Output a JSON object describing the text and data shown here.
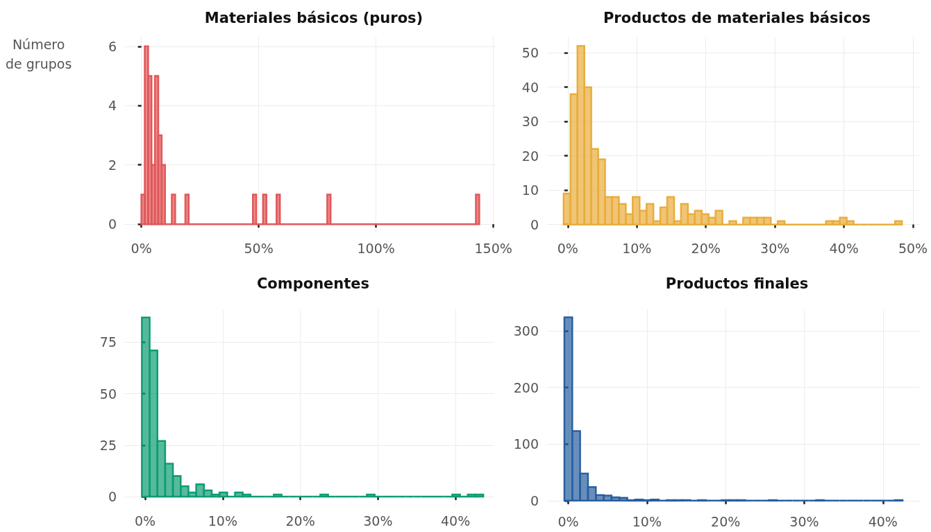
{
  "chart_data": [
    {
      "type": "histogram",
      "title": "Materiales básicos (puros)",
      "ylabel": "Número\nde grupos",
      "color": "#e15759",
      "bins": [
        0,
        1.44,
        2.88,
        4.32,
        5.76,
        7.2,
        8.64,
        10.08,
        12.96,
        14.4,
        18.72,
        20.16,
        47.52,
        48.96,
        51.84,
        53.28,
        57.6,
        59.04,
        79.2,
        80.64,
        142.56,
        144
      ],
      "values": [
        1,
        6,
        5,
        2,
        5,
        3,
        2,
        0,
        1,
        0,
        1,
        0,
        1,
        0,
        1,
        0,
        1,
        0,
        1,
        0,
        1
      ],
      "xlim": [
        -7,
        151
      ],
      "xticks": [
        {
          "value": 0,
          "label": "0%"
        },
        {
          "value": 50,
          "label": "50%"
        },
        {
          "value": 100,
          "label": "100%"
        },
        {
          "value": 150,
          "label": "150%"
        }
      ],
      "ylim": [
        -0.3,
        6.3
      ],
      "yticks": [
        0,
        2,
        4,
        6
      ],
      "grid": true
    },
    {
      "type": "histogram",
      "title": "Productos de materiales básicos",
      "color": "#e9ad3c",
      "bins": [
        -0.6,
        0.4,
        1.4,
        2.4,
        3.4,
        4.4,
        5.4,
        6.4,
        7.4,
        8.4,
        9.4,
        10.4,
        11.4,
        12.4,
        13.4,
        14.4,
        15.4,
        16.4,
        17.4,
        18.4,
        19.4,
        20.4,
        21.4,
        22.4,
        23.4,
        24.4,
        25.4,
        26.4,
        27.4,
        28.4,
        29.4,
        30.4,
        31.4,
        32.4,
        33.4,
        34.4,
        35.4,
        36.4,
        37.4,
        38.4,
        39.4,
        40.4,
        41.4,
        42.4,
        43.4,
        44.4,
        45.4,
        46.4,
        47.4,
        48.4
      ],
      "values": [
        9,
        38,
        52,
        40,
        22,
        19,
        8,
        8,
        6,
        3,
        8,
        4,
        6,
        1,
        5,
        8,
        1,
        6,
        3,
        4,
        3,
        2,
        4,
        0,
        1,
        0,
        2,
        2,
        2,
        2,
        0,
        1,
        0,
        0,
        0,
        0,
        0,
        0,
        1,
        1,
        2,
        1,
        0,
        0,
        0,
        0,
        0,
        0,
        1
      ],
      "xlim": [
        -3,
        51
      ],
      "xticks": [
        {
          "value": 0,
          "label": "0%"
        },
        {
          "value": 10,
          "label": "10%"
        },
        {
          "value": 20,
          "label": "20%"
        },
        {
          "value": 30,
          "label": "30%"
        },
        {
          "value": 40,
          "label": "40%"
        },
        {
          "value": 50,
          "label": "50%"
        }
      ],
      "ylim": [
        -2.5,
        54.5
      ],
      "yticks": [
        0,
        10,
        20,
        30,
        40,
        50
      ],
      "grid": true
    },
    {
      "type": "histogram",
      "title": "Componentes",
      "color": "#0e9c74",
      "bins": [
        -0.42,
        0.58,
        1.58,
        2.58,
        3.58,
        4.58,
        5.58,
        6.58,
        7.58,
        8.58,
        9.58,
        10.58,
        11.58,
        12.58,
        13.58,
        14.58,
        15.58,
        16.58,
        17.58,
        18.58,
        19.58,
        20.58,
        21.58,
        22.58,
        23.58,
        24.58,
        25.58,
        26.58,
        27.58,
        28.58,
        29.58,
        30.58,
        31.58,
        32.58,
        33.58,
        34.58,
        35.58,
        36.58,
        37.58,
        38.58,
        39.58,
        40.58,
        41.58,
        42.58,
        43.58
      ],
      "values": [
        87,
        71,
        27,
        16,
        10,
        5,
        2,
        6,
        3,
        1,
        2,
        0,
        2,
        1,
        0,
        0,
        0,
        1,
        0,
        0,
        0,
        0,
        0,
        1,
        0,
        0,
        0,
        0,
        0,
        1,
        0,
        0,
        0,
        0,
        0,
        0,
        0,
        0,
        0,
        0,
        1,
        0,
        1,
        1
      ],
      "xlim": [
        -2.6,
        45
      ],
      "xticks": [
        {
          "value": 0,
          "label": "0%"
        },
        {
          "value": 10,
          "label": "10%"
        },
        {
          "value": 20,
          "label": "20%"
        },
        {
          "value": 30,
          "label": "30%"
        },
        {
          "value": 40,
          "label": "40%"
        }
      ],
      "ylim": [
        -4.4,
        91
      ],
      "yticks": [
        0,
        25,
        50,
        75
      ],
      "grid": true
    },
    {
      "type": "histogram",
      "title": "Productos finales",
      "color": "#285f9f",
      "bins": [
        -0.5,
        0.5,
        1.5,
        2.5,
        3.5,
        4.5,
        5.5,
        6.5,
        7.5,
        8.5,
        9.5,
        10.5,
        11.5,
        12.5,
        13.5,
        14.5,
        15.5,
        16.5,
        17.5,
        18.5,
        19.5,
        20.5,
        21.5,
        22.5,
        23.5,
        24.5,
        25.5,
        26.5,
        27.5,
        28.5,
        29.5,
        30.5,
        31.5,
        32.5,
        33.5,
        34.5,
        35.5,
        36.5,
        37.5,
        38.5,
        39.5,
        40.5,
        41.5,
        42.5
      ],
      "values": [
        324,
        123,
        48,
        24,
        10,
        9,
        6,
        5,
        1,
        2,
        1,
        2,
        0,
        1,
        1,
        1,
        0,
        1,
        0,
        0,
        1,
        1,
        1,
        0,
        0,
        0,
        1,
        0,
        0,
        0,
        0,
        0,
        1,
        0,
        0,
        0,
        0,
        0,
        0,
        0,
        0,
        0,
        1
      ],
      "xlim": [
        -2.7,
        44.7
      ],
      "xticks": [
        {
          "value": 0,
          "label": "0%"
        },
        {
          "value": 10,
          "label": "10%"
        },
        {
          "value": 20,
          "label": "20%"
        },
        {
          "value": 30,
          "label": "30%"
        },
        {
          "value": 40,
          "label": "40%"
        }
      ],
      "ylim": [
        -10,
        338
      ],
      "yticks": [
        0,
        100,
        200,
        300
      ],
      "grid": true
    }
  ]
}
